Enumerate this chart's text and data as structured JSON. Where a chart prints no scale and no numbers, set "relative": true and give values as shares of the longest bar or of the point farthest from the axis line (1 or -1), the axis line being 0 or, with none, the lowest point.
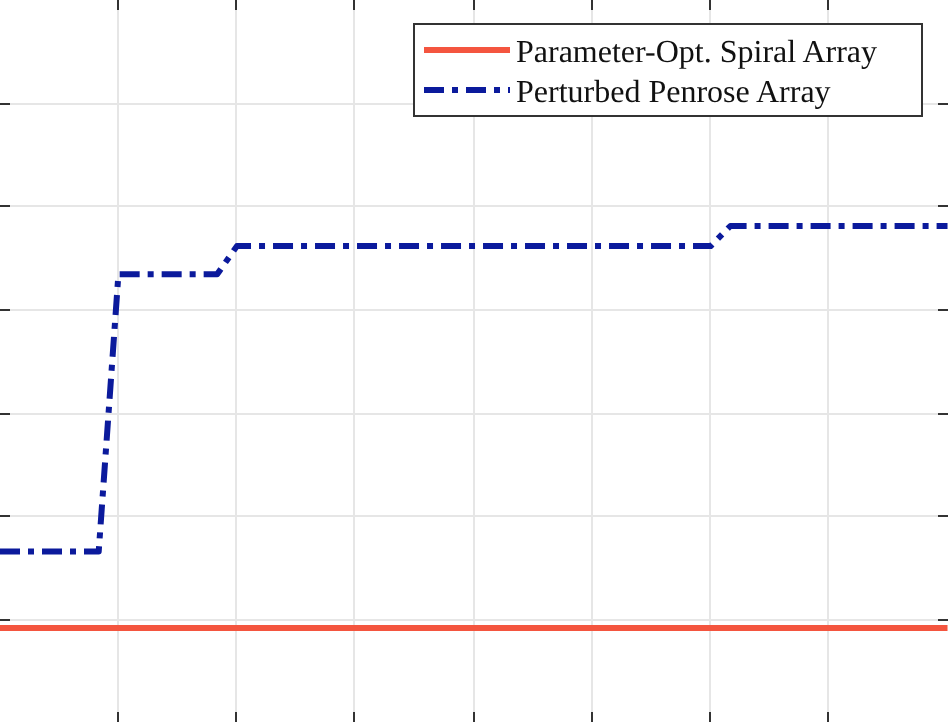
{
  "chart_data": {
    "type": "line",
    "relative": true,
    "grid": true,
    "legend": "top right",
    "categories": [
      null,
      null,
      null,
      null,
      null,
      null,
      null,
      null,
      null,
      null,
      null,
      null,
      null,
      null,
      null,
      null,
      null,
      null,
      null,
      null,
      null,
      null,
      null,
      null,
      null,
      null,
      null,
      null,
      null,
      null,
      null,
      null,
      null,
      null,
      null,
      null,
      null,
      null,
      null,
      null,
      null,
      null,
      null,
      null,
      null,
      null,
      null,
      null,
      null
    ],
    "series": [
      {
        "name": "Parameter-Opt. Spiral Array",
        "color": "#f4553f",
        "line_style": "solid",
        "values": [
          0,
          0,
          0,
          0,
          0,
          0,
          0,
          0,
          0,
          0,
          0,
          0,
          0,
          0,
          0,
          0,
          0,
          0,
          0,
          0,
          0,
          0,
          0,
          0,
          0,
          0,
          0,
          0,
          0,
          0,
          0,
          0,
          0,
          0,
          0,
          0,
          0,
          0,
          0,
          0,
          0,
          0,
          0,
          0,
          0,
          0,
          0,
          0,
          0
        ]
      },
      {
        "name": "Perturbed Penrose Array",
        "color": "#0b1a9c",
        "line_style": "dashdot",
        "values": [
          0.19,
          0.19,
          0.19,
          0.19,
          0.19,
          0.19,
          0.88,
          0.88,
          0.88,
          0.88,
          0.88,
          0.88,
          0.95,
          0.95,
          0.95,
          0.95,
          0.95,
          0.95,
          0.95,
          0.95,
          0.95,
          0.95,
          0.95,
          0.95,
          0.95,
          0.95,
          0.95,
          0.95,
          0.95,
          0.95,
          0.95,
          0.95,
          0.95,
          0.95,
          0.95,
          0.95,
          0.95,
          1,
          1,
          1,
          1,
          1,
          1,
          1,
          1,
          1,
          1,
          1,
          1
        ]
      }
    ]
  }
}
